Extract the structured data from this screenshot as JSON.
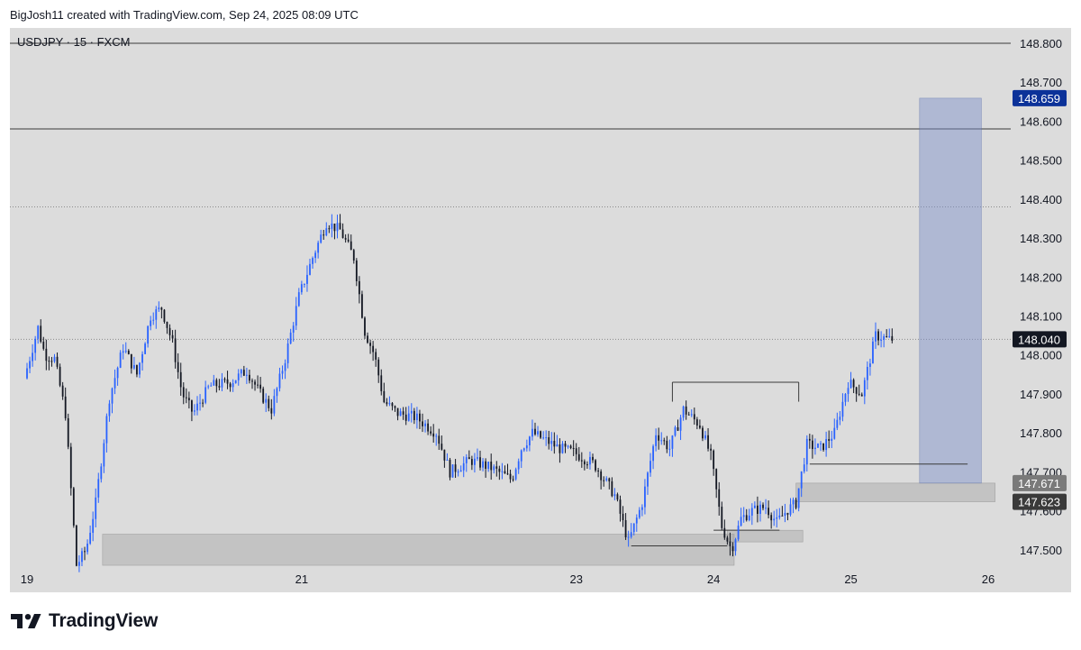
{
  "credit": "BigJosh11 created with TradingView.com, Sep 24, 2025 08:09 UTC",
  "brand": "TradingView",
  "chart_data": {
    "type": "candlestick",
    "symbol": "USDJPY · 15 · FXCM",
    "ylim": [
      147.4,
      148.83
    ],
    "y_ticks": [
      "148.800",
      "148.700",
      "148.600",
      "148.500",
      "148.400",
      "148.300",
      "148.200",
      "148.100",
      "148.000",
      "147.900",
      "147.800",
      "147.700",
      "147.600",
      "147.500"
    ],
    "x_range": [
      19,
      26.3
    ],
    "x_ticks": [
      {
        "label": "19",
        "day": 19
      },
      {
        "label": "21",
        "day": 21
      },
      {
        "label": "23",
        "day": 23
      },
      {
        "label": "24",
        "day": 24
      },
      {
        "label": "25",
        "day": 25
      },
      {
        "label": "26",
        "day": 26
      }
    ],
    "price_path": [
      [
        19.0,
        147.94
      ],
      [
        19.1,
        148.07
      ],
      [
        19.15,
        148.0
      ],
      [
        19.22,
        147.99
      ],
      [
        19.3,
        147.85
      ],
      [
        19.38,
        147.46
      ],
      [
        19.45,
        147.5
      ],
      [
        19.52,
        147.62
      ],
      [
        19.62,
        147.89
      ],
      [
        19.72,
        148.02
      ],
      [
        19.82,
        147.95
      ],
      [
        19.92,
        148.1
      ],
      [
        20.0,
        148.12
      ],
      [
        20.08,
        148.03
      ],
      [
        20.15,
        147.9
      ],
      [
        20.23,
        147.85
      ],
      [
        20.35,
        147.92
      ],
      [
        20.5,
        147.93
      ],
      [
        20.62,
        147.96
      ],
      [
        20.72,
        147.9
      ],
      [
        20.8,
        147.86
      ],
      [
        20.9,
        147.99
      ],
      [
        21.0,
        148.15
      ],
      [
        21.1,
        148.25
      ],
      [
        21.2,
        148.34
      ],
      [
        21.3,
        148.32
      ],
      [
        21.4,
        148.25
      ],
      [
        21.48,
        148.06
      ],
      [
        21.55,
        148.0
      ],
      [
        21.62,
        147.88
      ],
      [
        21.72,
        147.85
      ],
      [
        21.85,
        147.84
      ],
      [
        22.0,
        147.8
      ],
      [
        22.1,
        147.7
      ],
      [
        22.25,
        147.73
      ],
      [
        22.4,
        147.71
      ],
      [
        22.55,
        147.68
      ],
      [
        22.62,
        147.76
      ],
      [
        22.7,
        147.8
      ],
      [
        22.8,
        147.78
      ],
      [
        22.9,
        147.76
      ],
      [
        23.0,
        147.75
      ],
      [
        23.15,
        147.72
      ],
      [
        23.3,
        147.64
      ],
      [
        23.4,
        147.52
      ],
      [
        23.5,
        147.62
      ],
      [
        23.6,
        147.8
      ],
      [
        23.7,
        147.76
      ],
      [
        23.8,
        147.86
      ],
      [
        23.92,
        147.82
      ],
      [
        24.0,
        147.74
      ],
      [
        24.08,
        147.56
      ],
      [
        24.15,
        147.5
      ],
      [
        24.22,
        147.58
      ],
      [
        24.3,
        147.6
      ],
      [
        24.4,
        147.61
      ],
      [
        24.48,
        147.57
      ],
      [
        24.55,
        147.6
      ],
      [
        24.62,
        147.62
      ],
      [
        24.7,
        147.77
      ],
      [
        24.8,
        147.76
      ],
      [
        24.9,
        147.8
      ],
      [
        25.0,
        147.93
      ],
      [
        25.1,
        147.9
      ],
      [
        25.2,
        148.05
      ],
      [
        25.3,
        148.04
      ]
    ],
    "horizontal_lines": [
      {
        "price": 148.8,
        "style": "solid"
      },
      {
        "price": 148.58,
        "style": "solid"
      },
      {
        "price": 148.38,
        "style": "dotted"
      },
      {
        "price": 148.04,
        "style": "dotted"
      }
    ],
    "zones": [
      {
        "x0": 19.55,
        "x1": 24.15,
        "y0": 147.46,
        "y1": 147.54
      },
      {
        "x0": 24.1,
        "x1": 24.65,
        "y0": 147.52,
        "y1": 147.55
      },
      {
        "x0": 24.6,
        "x1": 26.05,
        "y0": 147.623,
        "y1": 147.671
      }
    ],
    "target_box": {
      "x0": 25.5,
      "x1": 25.95,
      "y0": 147.671,
      "y1": 148.659
    },
    "price_labels": [
      {
        "text": "148.659",
        "price": 148.659,
        "color": "#0c3299"
      },
      {
        "text": "148.040",
        "price": 148.04,
        "color": "#131722"
      },
      {
        "text": "147.671",
        "price": 147.671,
        "color": "#7a7a7a"
      },
      {
        "text": "147.623",
        "price": 147.623,
        "color": "#3a3a3a"
      }
    ]
  }
}
